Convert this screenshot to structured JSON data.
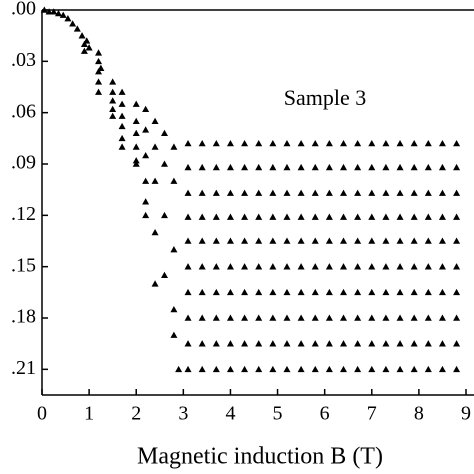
{
  "chart_data": {
    "type": "scatter",
    "annotation": "Sample 3",
    "xlabel": "Magnetic induction B (T)",
    "xlim": [
      0,
      9
    ],
    "xticks": [
      0,
      1,
      2,
      3,
      4,
      5,
      6,
      7,
      8,
      9
    ],
    "ylim": [
      -0.225,
      0
    ],
    "yticks": [
      {
        "value": 0,
        "label": ".00"
      },
      {
        "value": -0.03,
        "label": ".03"
      },
      {
        "value": -0.06,
        "label": ".06"
      },
      {
        "value": -0.09,
        "label": ".09"
      },
      {
        "value": -0.12,
        "label": ".12"
      },
      {
        "value": -0.15,
        "label": ".15"
      },
      {
        "value": -0.18,
        "label": ".18"
      },
      {
        "value": -0.21,
        "label": ".21"
      }
    ],
    "color": "#000000",
    "series": [
      {
        "x": [
          0.05,
          0.15,
          0.25,
          0.35,
          0.45,
          0.55,
          0.65,
          0.75,
          0.85,
          0.9,
          0.9,
          0.95,
          1.0,
          1.2,
          1.2,
          1.2,
          1.2,
          1.2,
          1.25,
          1.5,
          1.5,
          1.5,
          1.5,
          1.5,
          1.7,
          1.7,
          1.7,
          1.7,
          1.7,
          1.7,
          2.0,
          2.0,
          2.0,
          2.0,
          2.0,
          2.0,
          2.2,
          2.2,
          2.2,
          2.2,
          2.2,
          2.2,
          2.4,
          2.4,
          2.4,
          2.4,
          2.4,
          2.6,
          2.6,
          2.6,
          2.6,
          2.8,
          2.8,
          2.8,
          2.8,
          2.8,
          2.9
        ],
        "values": [
          0,
          -0.001,
          -0.001,
          -0.002,
          -0.003,
          -0.005,
          -0.008,
          -0.011,
          -0.015,
          -0.02,
          -0.024,
          -0.018,
          -0.022,
          -0.025,
          -0.03,
          -0.036,
          -0.042,
          -0.048,
          -0.034,
          -0.042,
          -0.048,
          -0.053,
          -0.058,
          -0.062,
          -0.048,
          -0.055,
          -0.062,
          -0.068,
          -0.075,
          -0.08,
          -0.055,
          -0.065,
          -0.072,
          -0.08,
          -0.088,
          -0.09,
          -0.058,
          -0.07,
          -0.085,
          -0.1,
          -0.112,
          -0.12,
          -0.065,
          -0.08,
          -0.1,
          -0.13,
          -0.16,
          -0.072,
          -0.09,
          -0.12,
          -0.155,
          -0.08,
          -0.1,
          -0.14,
          -0.175,
          -0.19,
          -0.21
        ]
      },
      {
        "x": [
          3.1,
          3.4,
          3.7,
          4.0,
          4.3,
          4.6,
          4.9,
          5.2,
          5.5,
          5.8,
          6.1,
          6.4,
          6.7,
          7.0,
          7.3,
          7.6,
          7.9,
          8.2,
          8.5,
          8.8
        ],
        "values": [
          -0.078,
          -0.078,
          -0.078,
          -0.078,
          -0.078,
          -0.078,
          -0.078,
          -0.078,
          -0.078,
          -0.078,
          -0.078,
          -0.078,
          -0.078,
          -0.078,
          -0.078,
          -0.078,
          -0.078,
          -0.078,
          -0.078,
          -0.078
        ]
      },
      {
        "x": [
          3.1,
          3.4,
          3.7,
          4.0,
          4.3,
          4.6,
          4.9,
          5.2,
          5.5,
          5.8,
          6.1,
          6.4,
          6.7,
          7.0,
          7.3,
          7.6,
          7.9,
          8.2,
          8.5,
          8.8
        ],
        "values": [
          -0.092,
          -0.092,
          -0.092,
          -0.092,
          -0.092,
          -0.092,
          -0.092,
          -0.092,
          -0.092,
          -0.092,
          -0.092,
          -0.092,
          -0.092,
          -0.092,
          -0.092,
          -0.092,
          -0.092,
          -0.092,
          -0.092,
          -0.092
        ]
      },
      {
        "x": [
          3.1,
          3.4,
          3.7,
          4.0,
          4.3,
          4.6,
          4.9,
          5.2,
          5.5,
          5.8,
          6.1,
          6.4,
          6.7,
          7.0,
          7.3,
          7.6,
          7.9,
          8.2,
          8.5,
          8.8
        ],
        "values": [
          -0.107,
          -0.107,
          -0.107,
          -0.107,
          -0.107,
          -0.107,
          -0.107,
          -0.107,
          -0.107,
          -0.107,
          -0.107,
          -0.107,
          -0.107,
          -0.107,
          -0.107,
          -0.107,
          -0.107,
          -0.107,
          -0.107,
          -0.107
        ]
      },
      {
        "x": [
          3.1,
          3.4,
          3.7,
          4.0,
          4.3,
          4.6,
          4.9,
          5.2,
          5.5,
          5.8,
          6.1,
          6.4,
          6.7,
          7.0,
          7.3,
          7.6,
          7.9,
          8.2,
          8.5,
          8.8
        ],
        "values": [
          -0.121,
          -0.121,
          -0.121,
          -0.121,
          -0.121,
          -0.121,
          -0.121,
          -0.121,
          -0.121,
          -0.121,
          -0.121,
          -0.121,
          -0.121,
          -0.121,
          -0.121,
          -0.121,
          -0.121,
          -0.121,
          -0.121,
          -0.121
        ]
      },
      {
        "x": [
          3.1,
          3.4,
          3.7,
          4.0,
          4.3,
          4.6,
          4.9,
          5.2,
          5.5,
          5.8,
          6.1,
          6.4,
          6.7,
          7.0,
          7.3,
          7.6,
          7.9,
          8.2,
          8.5,
          8.8
        ],
        "values": [
          -0.135,
          -0.135,
          -0.135,
          -0.135,
          -0.135,
          -0.135,
          -0.135,
          -0.135,
          -0.135,
          -0.135,
          -0.135,
          -0.135,
          -0.135,
          -0.135,
          -0.135,
          -0.135,
          -0.135,
          -0.135,
          -0.135,
          -0.135
        ]
      },
      {
        "x": [
          3.1,
          3.4,
          3.7,
          4.0,
          4.3,
          4.6,
          4.9,
          5.2,
          5.5,
          5.8,
          6.1,
          6.4,
          6.7,
          7.0,
          7.3,
          7.6,
          7.9,
          8.2,
          8.5,
          8.8
        ],
        "values": [
          -0.15,
          -0.15,
          -0.15,
          -0.15,
          -0.15,
          -0.15,
          -0.15,
          -0.15,
          -0.15,
          -0.15,
          -0.15,
          -0.15,
          -0.15,
          -0.15,
          -0.15,
          -0.15,
          -0.15,
          -0.15,
          -0.15,
          -0.15
        ]
      },
      {
        "x": [
          3.1,
          3.4,
          3.7,
          4.0,
          4.3,
          4.6,
          4.9,
          5.2,
          5.5,
          5.8,
          6.1,
          6.4,
          6.7,
          7.0,
          7.3,
          7.6,
          7.9,
          8.2,
          8.5,
          8.8
        ],
        "values": [
          -0.165,
          -0.165,
          -0.165,
          -0.165,
          -0.165,
          -0.165,
          -0.165,
          -0.165,
          -0.165,
          -0.165,
          -0.165,
          -0.165,
          -0.165,
          -0.165,
          -0.165,
          -0.165,
          -0.165,
          -0.165,
          -0.165,
          -0.165
        ]
      },
      {
        "x": [
          3.1,
          3.4,
          3.7,
          4.0,
          4.3,
          4.6,
          4.9,
          5.2,
          5.5,
          5.8,
          6.1,
          6.4,
          6.7,
          7.0,
          7.3,
          7.6,
          7.9,
          8.2,
          8.5,
          8.8
        ],
        "values": [
          -0.18,
          -0.18,
          -0.18,
          -0.18,
          -0.18,
          -0.18,
          -0.18,
          -0.18,
          -0.18,
          -0.18,
          -0.18,
          -0.18,
          -0.18,
          -0.18,
          -0.18,
          -0.18,
          -0.18,
          -0.18,
          -0.18,
          -0.18
        ]
      },
      {
        "x": [
          3.1,
          3.4,
          3.7,
          4.0,
          4.3,
          4.6,
          4.9,
          5.2,
          5.5,
          5.8,
          6.1,
          6.4,
          6.7,
          7.0,
          7.3,
          7.6,
          7.9,
          8.2,
          8.5,
          8.8
        ],
        "values": [
          -0.195,
          -0.195,
          -0.195,
          -0.195,
          -0.195,
          -0.195,
          -0.195,
          -0.195,
          -0.195,
          -0.195,
          -0.195,
          -0.195,
          -0.195,
          -0.195,
          -0.195,
          -0.195,
          -0.195,
          -0.195,
          -0.195,
          -0.195
        ]
      },
      {
        "x": [
          3.1,
          3.4,
          3.7,
          4.0,
          4.3,
          4.6,
          4.9,
          5.2,
          5.5,
          5.8,
          6.1,
          6.4,
          6.7,
          7.0,
          7.3,
          7.6,
          7.9,
          8.2,
          8.5,
          8.8
        ],
        "values": [
          -0.21,
          -0.21,
          -0.21,
          -0.21,
          -0.21,
          -0.21,
          -0.21,
          -0.21,
          -0.21,
          -0.21,
          -0.21,
          -0.21,
          -0.21,
          -0.21,
          -0.21,
          -0.21,
          -0.21,
          -0.21,
          -0.21,
          -0.21
        ]
      }
    ]
  }
}
